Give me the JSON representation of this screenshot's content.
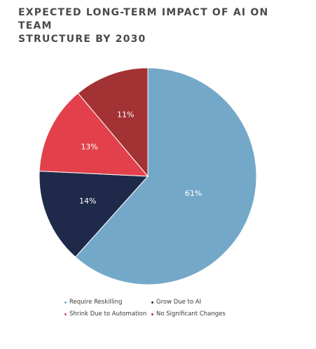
{
  "chart_data": {
    "type": "pie",
    "title_lines": [
      "EXPECTED LONG-TERM IMPACT OF AI ON TEAM",
      "STRUCTURE BY 2030"
    ],
    "slices": [
      {
        "label": "Require Reskilling",
        "value": 61,
        "display": "61%",
        "color": "#74a8c9"
      },
      {
        "label": "Grow Due to AI",
        "value": 14,
        "display": "14%",
        "color": "#1f2a4a"
      },
      {
        "label": "Shrink Due to Automation",
        "value": 13,
        "display": "13%",
        "color": "#e2414c"
      },
      {
        "label": "No Significant Changes",
        "value": 11,
        "display": "11%",
        "color": "#a33235"
      }
    ],
    "start_angle_deg": 0,
    "direction": "clockwise",
    "legend_position": "bottom"
  }
}
